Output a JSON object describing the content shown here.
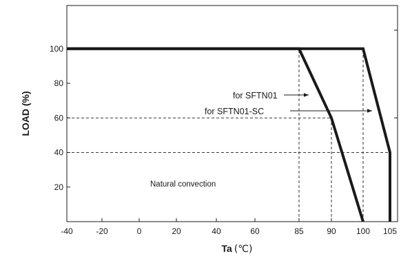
{
  "chart_data": {
    "type": "line",
    "xlabel": "Ta",
    "xlabel_unit": "(℃)",
    "ylabel": "LOAD (%)",
    "x_ticks": [
      "-40",
      "-20",
      "0",
      "20",
      "40",
      "60",
      "85",
      "90",
      "100",
      "105"
    ],
    "y_ticks": [
      "20",
      "40",
      "60",
      "80",
      "100"
    ],
    "y_range": [
      0,
      125
    ],
    "series": [
      {
        "name": "for SFTN01",
        "points": [
          {
            "x": -40,
            "y": 100
          },
          {
            "x": 85,
            "y": 100
          },
          {
            "x": 90,
            "y": 60
          },
          {
            "x": 100,
            "y": 0
          }
        ]
      },
      {
        "name": "for SFTN01-SC",
        "points": [
          {
            "x": -40,
            "y": 100
          },
          {
            "x": 100,
            "y": 100
          },
          {
            "x": 105,
            "y": 40
          },
          {
            "x": 105,
            "y": 0
          }
        ]
      }
    ],
    "reference_lines": [
      {
        "orientation": "horizontal",
        "y": 60,
        "x_from": -40,
        "x_to": 90
      },
      {
        "orientation": "horizontal",
        "y": 40,
        "x_from": -40,
        "x_to": 105
      },
      {
        "orientation": "vertical",
        "x": 85,
        "y_from": 0,
        "y_to": 100
      },
      {
        "orientation": "vertical",
        "x": 90,
        "y_from": 0,
        "y_to": 60
      },
      {
        "orientation": "vertical",
        "x": 100,
        "y_from": 0,
        "y_to": 100
      }
    ],
    "annotations": [
      {
        "text": "for SFTN01",
        "points_to": "for SFTN01"
      },
      {
        "text": "for SFTN01-SC",
        "points_to": "for SFTN01-SC"
      },
      {
        "text": "Natural convection"
      }
    ],
    "grid": false,
    "legend": "none"
  }
}
